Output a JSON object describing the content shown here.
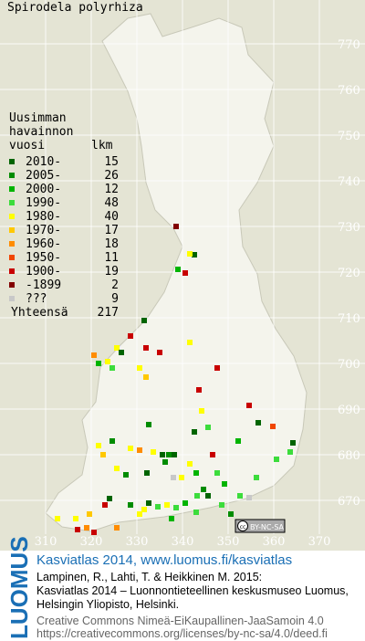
{
  "title": "Spirodela polyrhiza",
  "legend": {
    "header": [
      "Uusimman",
      "havainnon",
      "vuosi"
    ],
    "count_header": "lkm",
    "rows": [
      {
        "label": "2010-",
        "count": 15,
        "color": "#006400"
      },
      {
        "label": "2005-",
        "count": 26,
        "color": "#008c00"
      },
      {
        "label": "2000-",
        "count": 12,
        "color": "#00b400"
      },
      {
        "label": "1990-",
        "count": 48,
        "color": "#3cdc3c"
      },
      {
        "label": "1980-",
        "count": 40,
        "color": "#ffff00"
      },
      {
        "label": "1970-",
        "count": 17,
        "color": "#ffc800"
      },
      {
        "label": "1960-",
        "count": 18,
        "color": "#ff8c00"
      },
      {
        "label": "1950-",
        "count": 11,
        "color": "#f04600"
      },
      {
        "label": "1900-",
        "count": 19,
        "color": "#c80000"
      },
      {
        "label": "-1899",
        "count": 2,
        "color": "#820000"
      },
      {
        "label": "???",
        "count": 9,
        "color": "#c8c8c8"
      }
    ],
    "total_label": "Yhteensä",
    "total": 217
  },
  "grid_y_labels": [
    770,
    760,
    750,
    740,
    730,
    720,
    710,
    700,
    690,
    680,
    670
  ],
  "grid_x_labels": [
    310,
    320,
    330,
    340,
    350,
    360,
    370
  ],
  "cc_badge": [
    "cc",
    "BY-NC-SA"
  ],
  "footer": {
    "logo": "LUOMUS",
    "heading": "Kasviatlas 2014, www.luomus.fi/kasviatlas",
    "citation": [
      "Lampinen, R., Lahti, T. & Heikkinen M. 2015:",
      "Kasviatlas 2014 – Luonnontieteellinen keskusmuseo Luomus,",
      "Helsingin Yliopisto, Helsinki."
    ],
    "license": [
      "Creative Commons Nimeä-EiKaupallinen-JaaSamoin 4.0",
      "https://creativecommons.org/licenses/by-nc-sa/4.0/deed.fi"
    ]
  }
}
